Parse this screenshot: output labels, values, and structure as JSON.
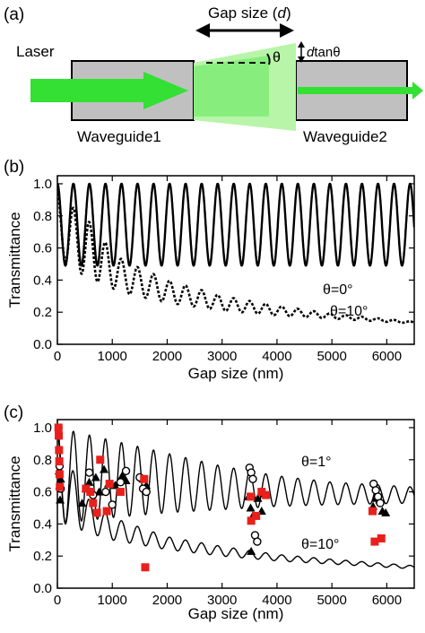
{
  "figure": {
    "panel_labels": [
      "(a)",
      "(b)",
      "(c)"
    ],
    "schematic": {
      "laser_label": "Laser",
      "gap_label_prefix": "Gap size (",
      "gap_label_var": "d",
      "gap_label_suffix": ")",
      "theta_label": "θ",
      "offset_label_var": "d",
      "offset_label_suffix": "tanθ",
      "waveguide1_label": "Waveguide1",
      "waveguide2_label": "Waveguide2",
      "colors": {
        "waveguide": "#c0c0c0",
        "laser": "#33e033",
        "beam_light": "#b8f5a8"
      }
    }
  },
  "chart_data": [
    {
      "type": "line",
      "panel": "(b)",
      "xlabel": "Gap size (nm)",
      "ylabel": "Transmittance",
      "xlim": [
        0,
        6500
      ],
      "ylim": [
        0,
        1.05
      ],
      "xticks": [
        0,
        1000,
        2000,
        3000,
        4000,
        5000,
        6000
      ],
      "yticks": [
        0.0,
        0.2,
        0.4,
        0.6,
        0.8,
        1.0
      ],
      "series": [
        {
          "name": "θ=0°",
          "style": "solid",
          "period_nm": 292,
          "min": 0.49,
          "max": 1.0
        },
        {
          "name": "θ=10°",
          "style": "dotted",
          "period_nm": 292,
          "envelope": [
            [
              0,
              0.54,
              0.94
            ],
            [
              250,
              0.5,
              0.86
            ],
            [
              500,
              0.42,
              0.8
            ],
            [
              800,
              0.38,
              0.66
            ],
            [
              1200,
              0.32,
              0.52
            ],
            [
              2000,
              0.26,
              0.4
            ],
            [
              3000,
              0.21,
              0.3
            ],
            [
              4000,
              0.18,
              0.24
            ],
            [
              5000,
              0.16,
              0.19
            ],
            [
              6500,
              0.13,
              0.14
            ]
          ]
        }
      ],
      "annotations": [
        "θ=0°",
        "θ=10°"
      ]
    },
    {
      "type": "line",
      "panel": "(c)",
      "xlabel": "Gap size (nm)",
      "ylabel": "Transmittance",
      "xlim": [
        0,
        6500
      ],
      "ylim": [
        0,
        1.05
      ],
      "xticks": [
        0,
        1000,
        2000,
        3000,
        4000,
        5000,
        6000
      ],
      "yticks": [
        0.0,
        0.2,
        0.4,
        0.6,
        0.8,
        1.0
      ],
      "series": [
        {
          "name": "θ=1°",
          "style": "solid",
          "period_nm": 292,
          "envelope": [
            [
              0,
              0.4,
              1.0
            ],
            [
              1000,
              0.44,
              0.92
            ],
            [
              2000,
              0.47,
              0.84
            ],
            [
              3000,
              0.49,
              0.76
            ],
            [
              4000,
              0.51,
              0.7
            ],
            [
              5000,
              0.52,
              0.66
            ],
            [
              6500,
              0.53,
              0.63
            ]
          ]
        },
        {
          "name": "θ=10°",
          "style": "solid",
          "period_nm": 292,
          "envelope": [
            [
              0,
              0.42,
              0.98
            ],
            [
              300,
              0.38,
              0.72
            ],
            [
              600,
              0.34,
              0.54
            ],
            [
              1000,
              0.3,
              0.44
            ],
            [
              2000,
              0.24,
              0.32
            ],
            [
              3000,
              0.2,
              0.26
            ],
            [
              4000,
              0.17,
              0.21
            ],
            [
              5000,
              0.15,
              0.18
            ],
            [
              6500,
              0.12,
              0.14
            ]
          ]
        }
      ],
      "scatter": [
        {
          "marker": "triangle",
          "color": "#000000",
          "points": [
            [
              30,
              0.73
            ],
            [
              40,
              0.64
            ],
            [
              50,
              0.55
            ],
            [
              60,
              0.68
            ],
            [
              450,
              0.53
            ],
            [
              520,
              0.62
            ],
            [
              580,
              0.66
            ],
            [
              700,
              0.69
            ],
            [
              760,
              0.6
            ],
            [
              850,
              0.74
            ],
            [
              930,
              0.65
            ],
            [
              1050,
              0.64
            ],
            [
              1110,
              0.66
            ],
            [
              1180,
              0.7
            ],
            [
              1250,
              0.67
            ],
            [
              1560,
              0.68
            ],
            [
              1620,
              0.64
            ],
            [
              3480,
              0.57
            ],
            [
              3520,
              0.5
            ],
            [
              3560,
              0.45
            ],
            [
              3650,
              0.56
            ],
            [
              3720,
              0.48
            ],
            [
              3760,
              0.59
            ],
            [
              3530,
              0.23
            ],
            [
              5750,
              0.51
            ],
            [
              5800,
              0.56
            ],
            [
              5870,
              0.55
            ],
            [
              5920,
              0.48
            ],
            [
              5980,
              0.47
            ]
          ]
        },
        {
          "marker": "circle-open",
          "color": "#000000",
          "points": [
            [
              40,
              0.76
            ],
            [
              60,
              0.62
            ],
            [
              580,
              0.72
            ],
            [
              650,
              0.58
            ],
            [
              880,
              0.6
            ],
            [
              1000,
              0.52
            ],
            [
              1150,
              0.66
            ],
            [
              1250,
              0.73
            ],
            [
              1500,
              0.69
            ],
            [
              1560,
              0.62
            ],
            [
              1620,
              0.6
            ],
            [
              3500,
              0.75
            ],
            [
              3530,
              0.72
            ],
            [
              3560,
              0.68
            ],
            [
              3600,
              0.33
            ],
            [
              3640,
              0.29
            ],
            [
              5760,
              0.65
            ],
            [
              5800,
              0.61
            ],
            [
              5840,
              0.57
            ],
            [
              5880,
              0.53
            ]
          ]
        },
        {
          "marker": "square",
          "color": "#e8201c",
          "points": [
            [
              20,
              1.0
            ],
            [
              25,
              0.95
            ],
            [
              30,
              0.86
            ],
            [
              35,
              0.79
            ],
            [
              40,
              0.71
            ],
            [
              45,
              0.63
            ],
            [
              520,
              0.62
            ],
            [
              600,
              0.6
            ],
            [
              650,
              0.53
            ],
            [
              720,
              0.47
            ],
            [
              780,
              0.8
            ],
            [
              900,
              0.48
            ],
            [
              950,
              0.65
            ],
            [
              1150,
              0.6
            ],
            [
              1580,
              0.68
            ],
            [
              1600,
              0.13
            ],
            [
              3520,
              0.57
            ],
            [
              3530,
              0.42
            ],
            [
              3620,
              0.45
            ],
            [
              3720,
              0.6
            ],
            [
              3800,
              0.58
            ],
            [
              5740,
              0.48
            ],
            [
              5780,
              0.29
            ],
            [
              5900,
              0.31
            ]
          ]
        }
      ],
      "annotations": [
        "θ=1°",
        "θ=10°"
      ]
    }
  ]
}
